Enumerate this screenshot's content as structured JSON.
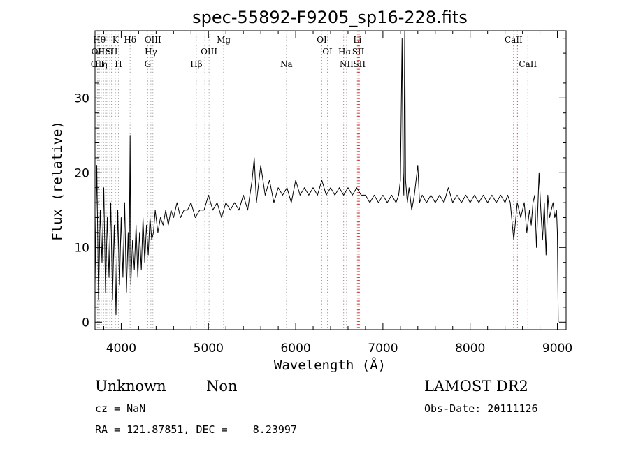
{
  "chart_data": {
    "type": "line",
    "title": "spec-55892-F9205_sp16-228.fits",
    "xlabel": "Wavelength (Å)",
    "ylabel": "Flux (relative)",
    "xlim": [
      3700,
      9100
    ],
    "ylim": [
      -1,
      39
    ],
    "xticks": [
      4000,
      5000,
      6000,
      7000,
      8000,
      9000
    ],
    "yticks": [
      0,
      10,
      20,
      30
    ],
    "grid": false,
    "series": [
      {
        "x": [
          3700,
          3720,
          3740,
          3760,
          3780,
          3800,
          3820,
          3840,
          3860,
          3880,
          3900,
          3920,
          3940,
          3960,
          3980,
          4000,
          4020,
          4040,
          4060,
          4080,
          4090,
          4102,
          4110,
          4130,
          4150,
          4170,
          4190,
          4210,
          4230,
          4250,
          4270,
          4290,
          4310,
          4330,
          4350,
          4370,
          4390,
          4420,
          4450,
          4480,
          4510,
          4540,
          4570,
          4600,
          4640,
          4680,
          4720,
          4760,
          4800,
          4850,
          4900,
          4950,
          5000,
          5050,
          5100,
          5150,
          5200,
          5250,
          5300,
          5350,
          5400,
          5450,
          5500,
          5525,
          5550,
          5600,
          5650,
          5700,
          5750,
          5800,
          5850,
          5900,
          5950,
          6000,
          6050,
          6100,
          6150,
          6200,
          6250,
          6300,
          6350,
          6400,
          6450,
          6500,
          6550,
          6600,
          6650,
          6700,
          6750,
          6800,
          6850,
          6900,
          6950,
          7000,
          7050,
          7100,
          7150,
          7180,
          7200,
          7220,
          7230,
          7240,
          7250,
          7260,
          7280,
          7300,
          7330,
          7360,
          7400,
          7420,
          7450,
          7500,
          7550,
          7600,
          7650,
          7700,
          7750,
          7800,
          7850,
          7900,
          7950,
          8000,
          8050,
          8100,
          8150,
          8200,
          8250,
          8300,
          8350,
          8400,
          8430,
          8460,
          8500,
          8540,
          8580,
          8620,
          8650,
          8680,
          8700,
          8720,
          8740,
          8760,
          8790,
          8810,
          8830,
          8850,
          8870,
          8890,
          8910,
          8930,
          8950,
          8970,
          8990,
          9000,
          9010
        ],
        "values": [
          5,
          21,
          3,
          15,
          8,
          18,
          4,
          14,
          6,
          16,
          3,
          13,
          1,
          15,
          5,
          14,
          6,
          16,
          4,
          12,
          6,
          25,
          5,
          11,
          7,
          13,
          6,
          12,
          7,
          14,
          8,
          13,
          9,
          14,
          11,
          12,
          15,
          12,
          14,
          13,
          15,
          13,
          15,
          14,
          16,
          14,
          15,
          15,
          16,
          14,
          15,
          15,
          17,
          15,
          16,
          14,
          16,
          15,
          16,
          15,
          17,
          15,
          19,
          22,
          16,
          21,
          17,
          19,
          16,
          18,
          17,
          18,
          16,
          19,
          17,
          18,
          17,
          18,
          17,
          19,
          17,
          18,
          17,
          18,
          17,
          18,
          17,
          18,
          17,
          17,
          16,
          17,
          16,
          17,
          16,
          17,
          16,
          17,
          19,
          38,
          20,
          17,
          39,
          19,
          16,
          18,
          15,
          17,
          21,
          16,
          17,
          16,
          17,
          16,
          17,
          16,
          18,
          16,
          17,
          16,
          17,
          16,
          17,
          16,
          17,
          16,
          17,
          16,
          17,
          16,
          17,
          16,
          11,
          16,
          14,
          16,
          12,
          15,
          13,
          16,
          17,
          10,
          20,
          15,
          11,
          16,
          9,
          17,
          14,
          15,
          16,
          14,
          15,
          12,
          0
        ]
      }
    ],
    "lines": [
      {
        "x": 3727,
        "color": "#9a9a9a",
        "row": 2,
        "label": "OII"
      },
      {
        "x": 3734,
        "color": "#9a9a9a",
        "row": 1,
        "label": "OII"
      },
      {
        "x": 3750,
        "color": "#9a9a9a",
        "row": 0,
        "label": "Hθ"
      },
      {
        "x": 3771,
        "color": "#9a9a9a",
        "row": 2,
        "label": "Hη"
      },
      {
        "x": 3798,
        "color": "#9a9a9a",
        "row": -1,
        "label": ""
      },
      {
        "x": 3820,
        "color": "#9a9a9a",
        "row": 1,
        "label": "HeI"
      },
      {
        "x": 3835,
        "color": "#9a9a9a",
        "row": -1,
        "label": ""
      },
      {
        "x": 3869,
        "color": "#9a9a9a",
        "row": -1,
        "label": ""
      },
      {
        "x": 3889,
        "color": "#9a9a9a",
        "row": 1,
        "label": "SII"
      },
      {
        "x": 3934,
        "color": "#9a9a9a",
        "row": 0,
        "label": "K"
      },
      {
        "x": 3968,
        "color": "#9a9a9a",
        "row": 2,
        "label": "H"
      },
      {
        "x": 4102,
        "color": "#9a9a9a",
        "row": 0,
        "label": "Hδ"
      },
      {
        "x": 4304,
        "color": "#9a9a9a",
        "row": 2,
        "label": "G"
      },
      {
        "x": 4340,
        "color": "#9a9a9a",
        "row": 1,
        "label": "Hγ"
      },
      {
        "x": 4363,
        "color": "#9a9a9a",
        "row": 0,
        "label": "OIII"
      },
      {
        "x": 4861,
        "color": "#9a9a9a",
        "row": 2,
        "label": "Hβ"
      },
      {
        "x": 4959,
        "color": "#9a9a9a",
        "row": -1,
        "label": ""
      },
      {
        "x": 5007,
        "color": "#9a9a9a",
        "row": 1,
        "label": "OIII"
      },
      {
        "x": 5175,
        "color": "#d23232",
        "row": 0,
        "label": "Mg"
      },
      {
        "x": 5894,
        "color": "#9a9a9a",
        "row": 2,
        "label": "Na"
      },
      {
        "x": 6300,
        "color": "#9a9a9a",
        "row": 0,
        "label": "OI"
      },
      {
        "x": 6364,
        "color": "#9a9a9a",
        "row": 1,
        "label": "OI"
      },
      {
        "x": 6548,
        "color": "#9a9a9a",
        "row": -1,
        "label": ""
      },
      {
        "x": 6563,
        "color": "#d23232",
        "row": 1,
        "label": "Hα"
      },
      {
        "x": 6583,
        "color": "#9a9a9a",
        "row": 2,
        "label": "NII"
      },
      {
        "x": 6707,
        "color": "#d23232",
        "row": 0,
        "label": "Li"
      },
      {
        "x": 6717,
        "color": "#d23232",
        "row": 1,
        "label": "SII"
      },
      {
        "x": 6731,
        "color": "#d23232",
        "row": 2,
        "label": "SII"
      },
      {
        "x": 8498,
        "color": "#d23232",
        "row": 0,
        "label": "CaII"
      },
      {
        "x": 8542,
        "color": "#d23232",
        "row": -1,
        "label": ""
      },
      {
        "x": 8662,
        "color": "#d23232",
        "row": 2,
        "label": "CaII"
      }
    ]
  },
  "info": {
    "classification": "Unknown",
    "subclass": "Non",
    "survey": "LAMOST DR2",
    "cz": "cz = NaN",
    "obs_date": "Obs-Date: 20111126",
    "coords": "RA = 121.87851, DEC =    8.23997"
  }
}
